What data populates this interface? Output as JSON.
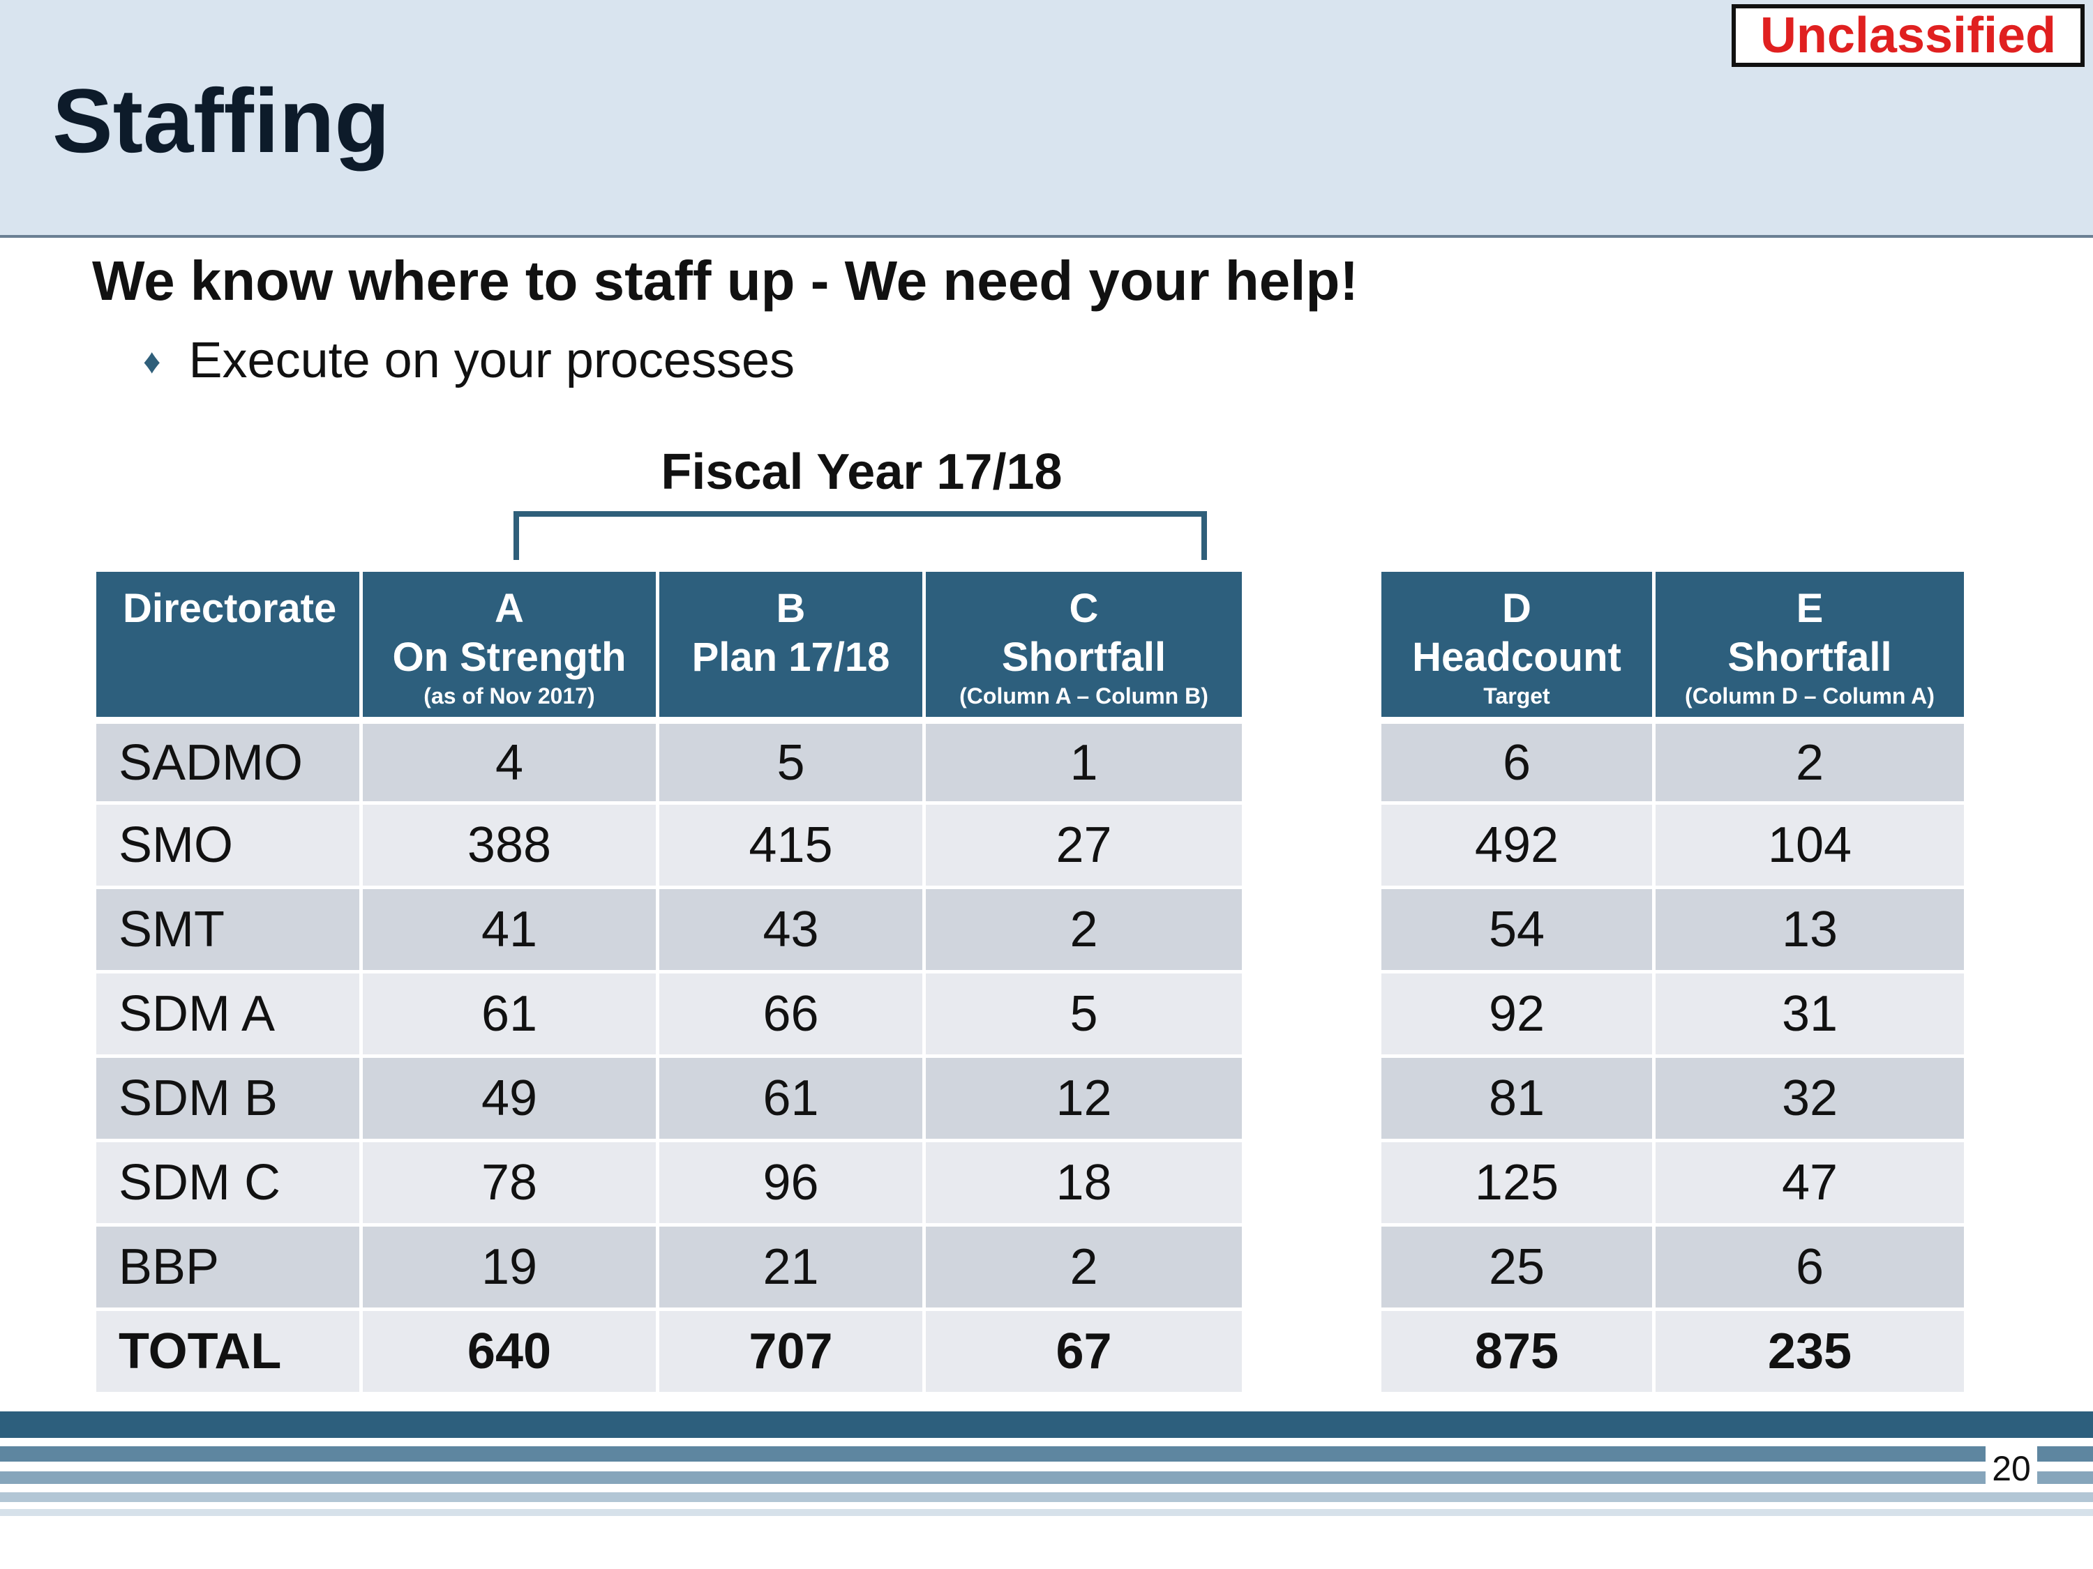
{
  "slide": {
    "title": "Staffing",
    "classification": "Unclassified",
    "subtitle": "We know where to staff up - We need your help!",
    "bullet_icon": "diamond-bullet-icon",
    "bullet": "Execute on your processes",
    "fiscal_year_label": "Fiscal Year 17/18",
    "page_number": "20"
  },
  "colors": {
    "header_bg": "#d9e4ef",
    "table_header": "#2d5f7d",
    "row_dark": "#d0d5dd",
    "row_light": "#e8eaef",
    "classification_text": "#e02020"
  },
  "left_table": {
    "headers": [
      {
        "line1": "Directorate",
        "line2": "",
        "note": ""
      },
      {
        "line1": "A",
        "line2": "On Strength",
        "note": "(as of Nov 2017)"
      },
      {
        "line1": "B",
        "line2": "Plan 17/18",
        "note": ""
      },
      {
        "line1": "C",
        "line2": "Shortfall",
        "note": "(Column A – Column B)"
      }
    ],
    "rows": [
      [
        "SADMO",
        "4",
        "5",
        "1"
      ],
      [
        "SMO",
        "388",
        "415",
        "27"
      ],
      [
        "SMT",
        "41",
        "43",
        "2"
      ],
      [
        "SDM A",
        "61",
        "66",
        "5"
      ],
      [
        "SDM B",
        "49",
        "61",
        "12"
      ],
      [
        "SDM C",
        "78",
        "96",
        "18"
      ],
      [
        "BBP",
        "19",
        "21",
        "2"
      ],
      [
        "TOTAL",
        "640",
        "707",
        "67"
      ]
    ]
  },
  "right_table": {
    "headers": [
      {
        "line1": "D",
        "line2": "Headcount",
        "note": "Target"
      },
      {
        "line1": "E",
        "line2": "Shortfall",
        "note": "(Column D – Column A)"
      }
    ],
    "rows": [
      [
        "6",
        "2"
      ],
      [
        "492",
        "104"
      ],
      [
        "54",
        "13"
      ],
      [
        "92",
        "31"
      ],
      [
        "81",
        "32"
      ],
      [
        "125",
        "47"
      ],
      [
        "25",
        "6"
      ],
      [
        "875",
        "235"
      ]
    ]
  }
}
